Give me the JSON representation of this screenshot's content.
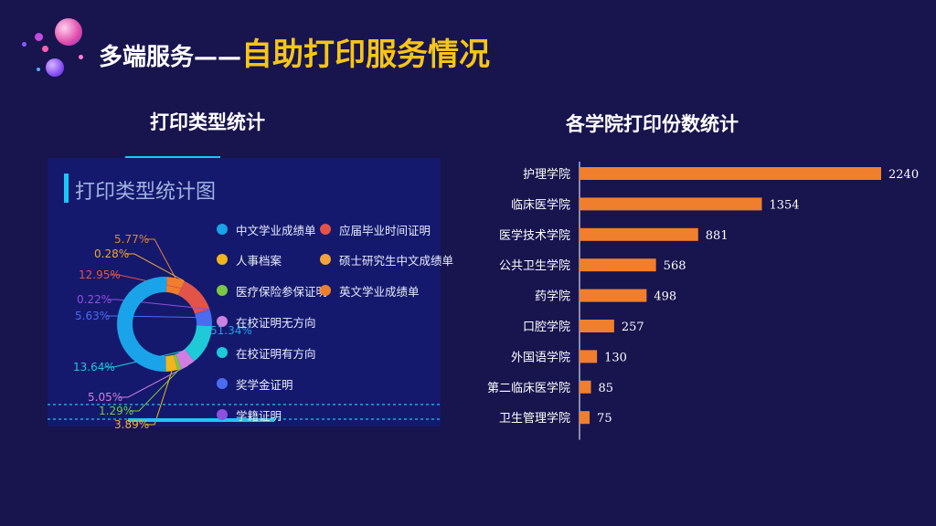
{
  "header": {
    "title_prefix": "多端服务——",
    "title_main": "自助打印服务情况"
  },
  "left_section": {
    "title": "打印类型统计",
    "panel_title": "打印类型统计图"
  },
  "right_section": {
    "title": "各学院打印份数统计"
  },
  "colors": {
    "background": "#17144e",
    "title_accent": "#f5c518",
    "bar": "#f07f2d",
    "panel": "#14196d",
    "cyan": "#19c8f5"
  },
  "chart_data": [
    {
      "type": "pie",
      "title": "打印类型统计图",
      "legend": [
        {
          "name": "中文学业成绩单",
          "color": "#1aa3e8"
        },
        {
          "name": "应届毕业时间证明",
          "color": "#e2534a"
        },
        {
          "name": "人事档案",
          "color": "#f2b51c"
        },
        {
          "name": "硕士研究生中文成绩单",
          "color": "#f2a33a"
        },
        {
          "name": "医疗保险参保证明",
          "color": "#7bc843"
        },
        {
          "name": "英文学业成绩单",
          "color": "#f07f2d"
        },
        {
          "name": "在校证明无方向",
          "color": "#d07fe0"
        },
        {
          "name": "在校证明有方向",
          "color": "#1ec9d8"
        },
        {
          "name": "奖学金证明",
          "color": "#4b6cf0"
        },
        {
          "name": "学籍证明",
          "color": "#8f4fe0"
        }
      ],
      "slices": [
        {
          "label": "5.77%",
          "value": 5.77,
          "color": "#f07f2d"
        },
        {
          "label": "0.28%",
          "value": 0.28,
          "color": "#f2a33a"
        },
        {
          "label": "12.95%",
          "value": 12.95,
          "color": "#e2534a"
        },
        {
          "label": "0.22%",
          "value": 0.22,
          "color": "#8f4fe0"
        },
        {
          "label": "5.63%",
          "value": 5.63,
          "color": "#4b6cf0"
        },
        {
          "label": "13.64%",
          "value": 13.64,
          "color": "#1ec9d8"
        },
        {
          "label": "5.05%",
          "value": 5.05,
          "color": "#d07fe0"
        },
        {
          "label": "1.29%",
          "value": 1.29,
          "color": "#7bc843"
        },
        {
          "label": "3.89%",
          "value": 3.89,
          "color": "#f2b51c"
        },
        {
          "label": "51.34%",
          "value": 51.34,
          "color": "#1aa3e8"
        }
      ]
    },
    {
      "type": "bar",
      "orientation": "horizontal",
      "title": "各学院打印份数统计",
      "categories": [
        "护理学院",
        "临床医学院",
        "医学技术学院",
        "公共卫生学院",
        "药学院",
        "口腔学院",
        "外国语学院",
        "第二临床医学院",
        "卫生管理学院"
      ],
      "values": [
        2240,
        1354,
        881,
        568,
        498,
        257,
        130,
        85,
        75
      ],
      "value_labels": [
        "2240",
        "1354",
        "881",
        "568",
        "498",
        "257",
        "130",
        "85",
        "75"
      ],
      "color": "#f07f2d"
    }
  ]
}
